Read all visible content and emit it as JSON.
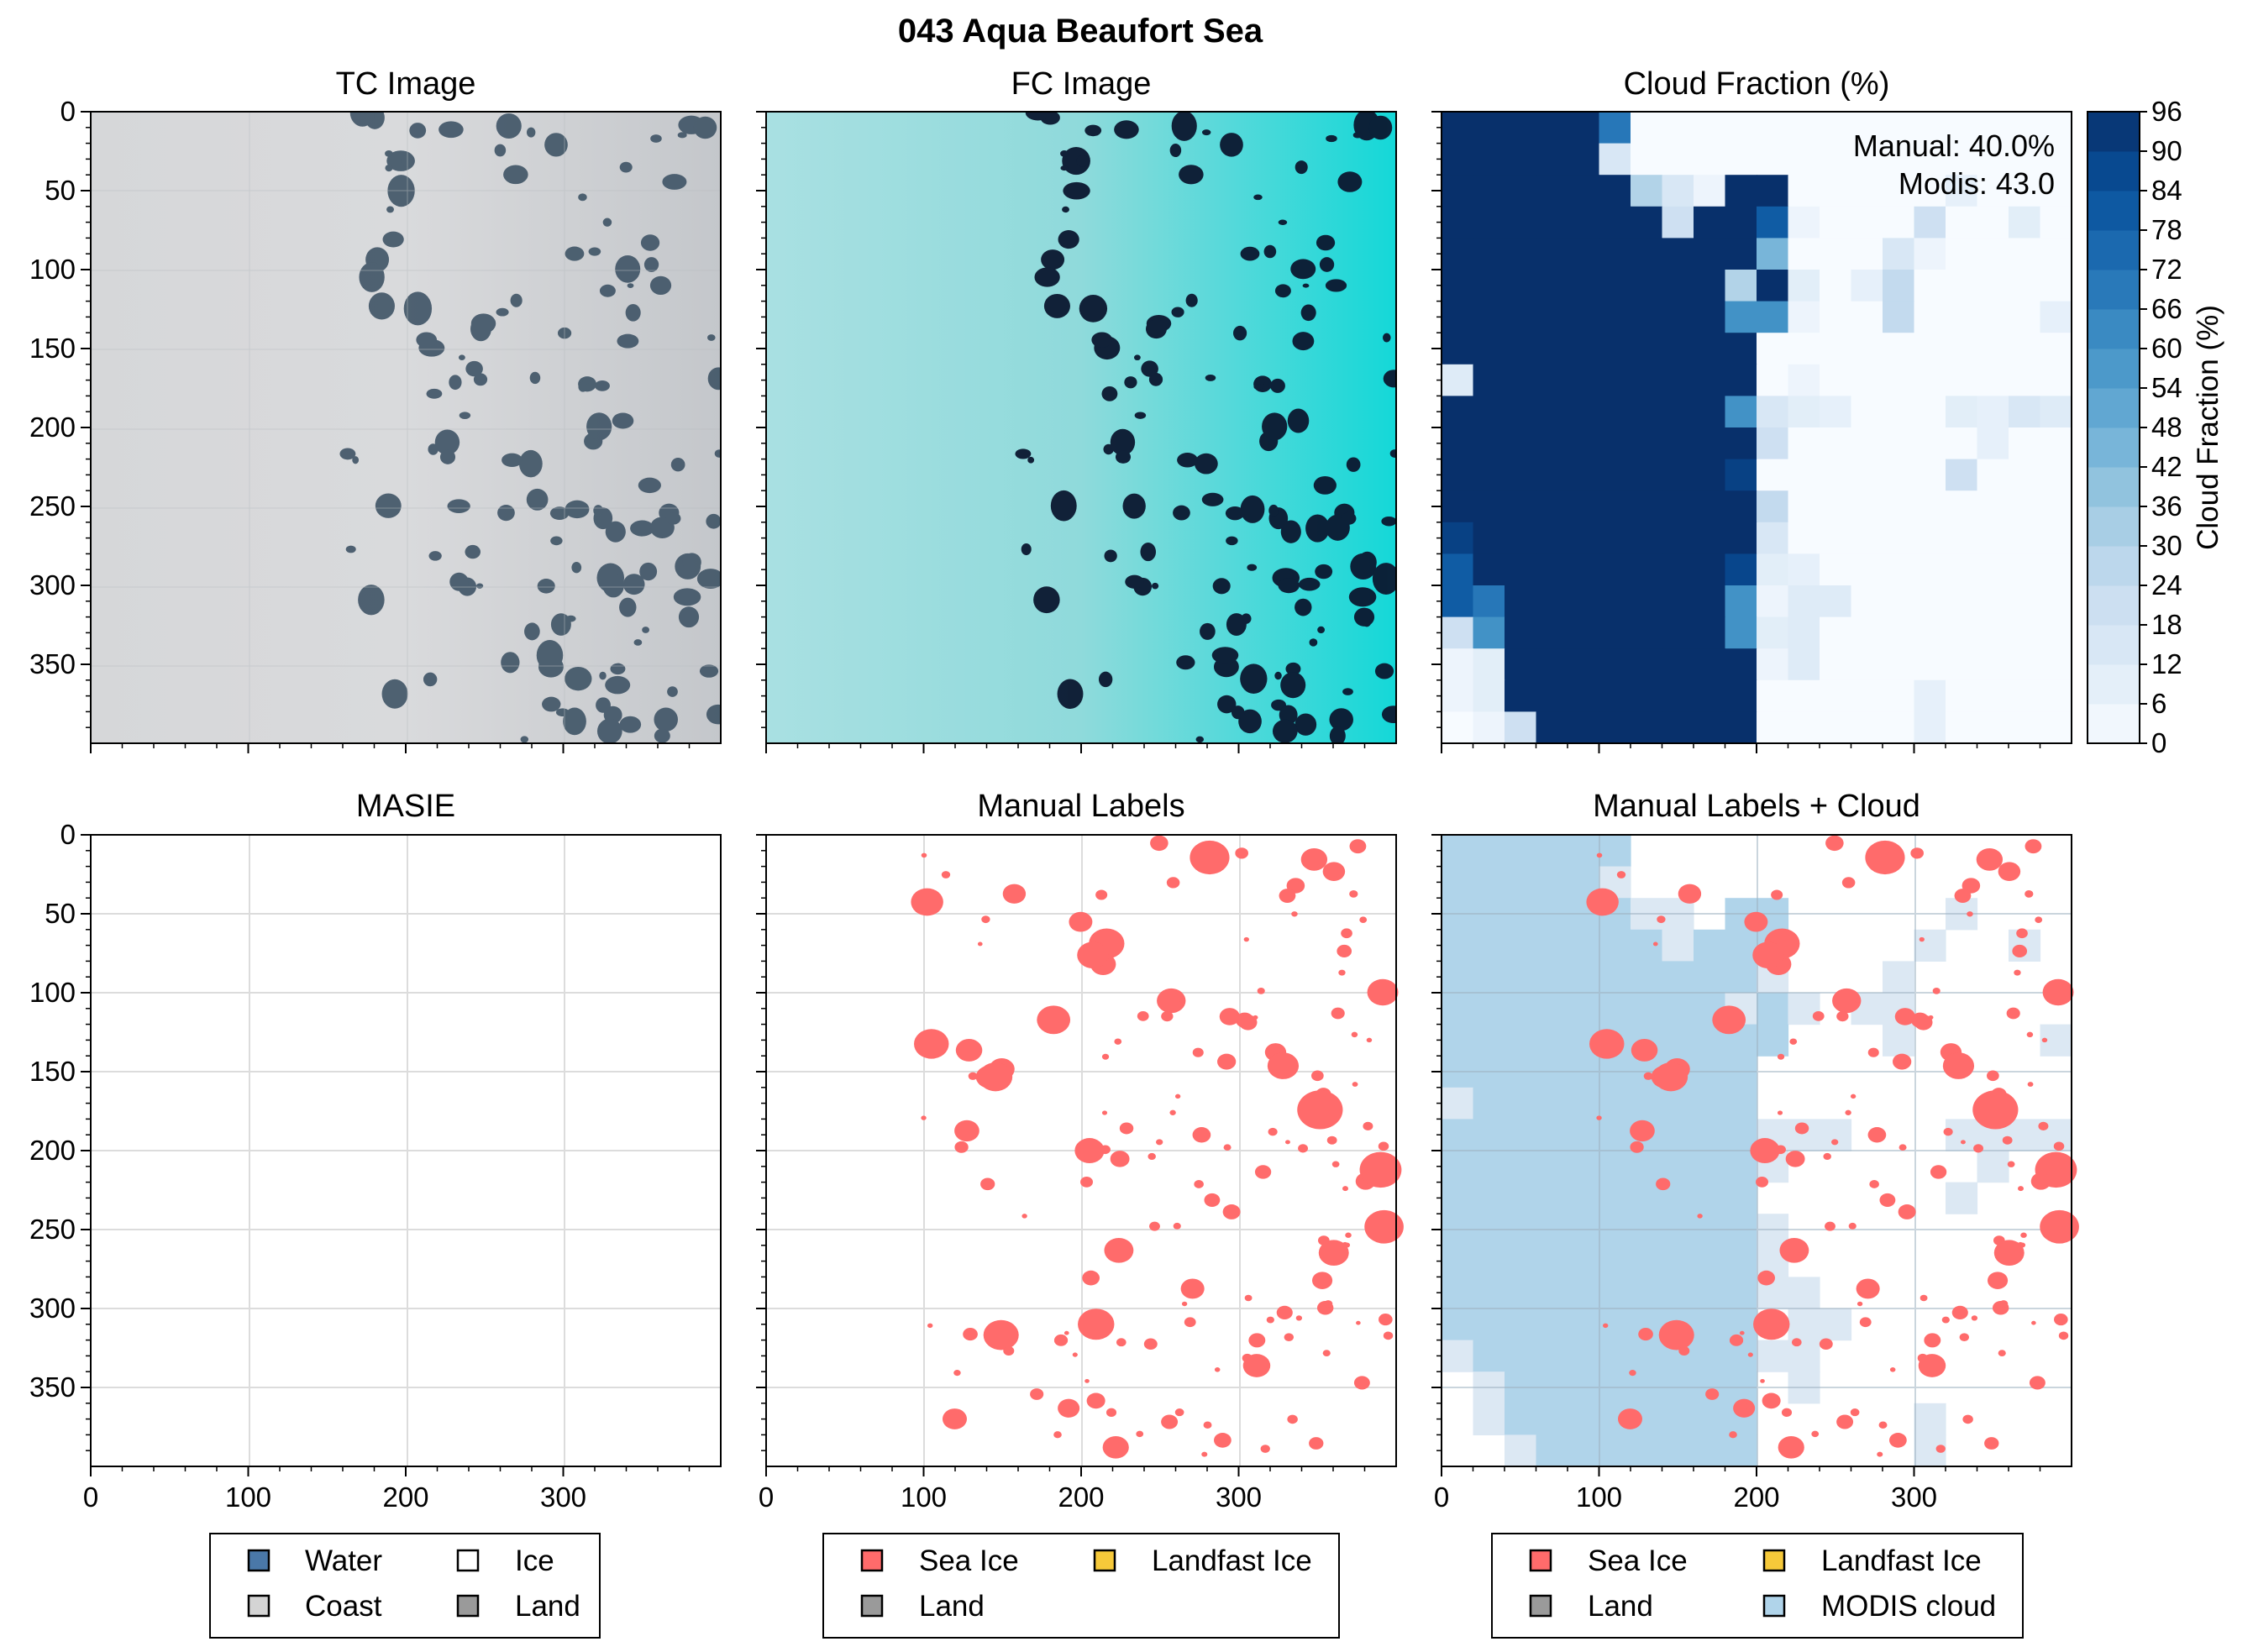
{
  "figure": {
    "suptitle": "043 Aqua Beaufort Sea"
  },
  "panels": {
    "tc": {
      "title": "TC Image"
    },
    "fc": {
      "title": "FC Image"
    },
    "cf": {
      "title": "Cloud Fraction (%)",
      "annotation_manual": "Manual: 40.0%",
      "annotation_modis": "Modis: 43.0",
      "colorbar_label": "Cloud Fraction (%)",
      "colorbar_ticks": [
        "0",
        "6",
        "12",
        "18",
        "24",
        "30",
        "36",
        "42",
        "48",
        "54",
        "60",
        "66",
        "72",
        "78",
        "84",
        "90",
        "96"
      ]
    },
    "masie": {
      "title": "MASIE",
      "legend": [
        "Water",
        "Ice",
        "Coast",
        "Land"
      ]
    },
    "manual": {
      "title": "Manual Labels",
      "legend": [
        "Sea Ice",
        "Landfast Ice",
        "Land"
      ]
    },
    "manual_cloud": {
      "title": "Manual Labels + Cloud",
      "legend": [
        "Sea Ice",
        "Landfast Ice",
        "Land",
        "MODIS cloud"
      ]
    }
  },
  "axis_ticks": [
    "0",
    "50",
    "100",
    "150",
    "200",
    "250",
    "300",
    "350"
  ],
  "axis_ticks_x": [
    "0",
    "100",
    "200",
    "300"
  ],
  "colors": {
    "water": "#4a78a8",
    "ice": "#ffffff",
    "coast": "#d4d4d4",
    "land": "#9a9a9a",
    "sea_ice": "#ff6b6b",
    "landfast_ice": "#f6c93a",
    "modis_cloud": "#b0d4ea",
    "cloud_max": "#08306b",
    "fc_cyan": "#00dada",
    "tc_gray": "#c9ccd0"
  },
  "chart_data": [
    {
      "type": "heatmap",
      "panel": "Cloud Fraction (%)",
      "description_units": "percent cloud fraction per ~20px cell (approximate)",
      "xlim": [
        0,
        400
      ],
      "ylim": [
        400,
        0
      ],
      "clim": [
        0,
        96
      ],
      "rows_y": [
        0,
        20,
        40,
        60,
        80,
        100,
        120,
        140,
        160,
        180,
        200,
        220,
        240,
        260,
        280,
        300,
        320,
        340,
        360,
        380
      ],
      "cols_x": [
        0,
        20,
        40,
        60,
        80,
        100,
        120,
        140,
        160,
        180,
        200,
        220,
        240,
        260,
        280,
        300,
        320,
        340,
        360,
        380
      ],
      "values": [
        [
          96,
          96,
          96,
          96,
          96,
          70,
          0,
          0,
          0,
          0,
          0,
          0,
          0,
          0,
          0,
          0,
          0,
          0,
          0,
          0
        ],
        [
          96,
          96,
          96,
          96,
          96,
          15,
          0,
          0,
          0,
          0,
          0,
          0,
          0,
          0,
          0,
          0,
          0,
          0,
          0,
          0
        ],
        [
          96,
          96,
          96,
          96,
          96,
          96,
          30,
          15,
          5,
          96,
          96,
          0,
          0,
          0,
          0,
          0,
          8,
          0,
          0,
          0
        ],
        [
          96,
          96,
          96,
          96,
          96,
          96,
          96,
          20,
          96,
          96,
          80,
          5,
          0,
          0,
          0,
          20,
          0,
          0,
          10,
          0
        ],
        [
          96,
          96,
          96,
          96,
          96,
          96,
          96,
          96,
          96,
          96,
          45,
          0,
          0,
          0,
          15,
          5,
          0,
          0,
          0,
          0
        ],
        [
          96,
          96,
          96,
          96,
          96,
          96,
          96,
          96,
          96,
          30,
          96,
          10,
          0,
          8,
          25,
          0,
          0,
          0,
          0,
          0
        ],
        [
          96,
          96,
          96,
          96,
          96,
          96,
          96,
          96,
          96,
          60,
          60,
          5,
          0,
          0,
          25,
          0,
          0,
          0,
          0,
          8
        ],
        [
          96,
          96,
          96,
          96,
          96,
          96,
          96,
          96,
          96,
          96,
          0,
          0,
          0,
          0,
          0,
          0,
          0,
          0,
          0,
          0
        ],
        [
          12,
          96,
          96,
          96,
          96,
          96,
          96,
          96,
          96,
          96,
          0,
          5,
          0,
          0,
          0,
          0,
          0,
          0,
          0,
          0
        ],
        [
          96,
          96,
          96,
          96,
          96,
          96,
          96,
          96,
          96,
          60,
          15,
          10,
          8,
          0,
          0,
          0,
          10,
          8,
          15,
          12
        ],
        [
          96,
          96,
          96,
          96,
          96,
          96,
          96,
          96,
          96,
          96,
          20,
          0,
          0,
          0,
          0,
          0,
          0,
          8,
          0,
          0
        ],
        [
          96,
          96,
          96,
          96,
          96,
          96,
          96,
          96,
          96,
          90,
          0,
          0,
          0,
          0,
          0,
          0,
          20,
          0,
          0,
          0
        ],
        [
          96,
          96,
          96,
          96,
          96,
          96,
          96,
          96,
          96,
          96,
          25,
          0,
          0,
          0,
          0,
          0,
          0,
          0,
          0,
          0
        ],
        [
          90,
          96,
          96,
          96,
          96,
          96,
          96,
          96,
          96,
          96,
          15,
          0,
          0,
          0,
          0,
          0,
          0,
          0,
          0,
          0
        ],
        [
          80,
          96,
          96,
          96,
          96,
          96,
          96,
          96,
          96,
          88,
          10,
          8,
          0,
          0,
          0,
          0,
          0,
          0,
          0,
          0
        ],
        [
          80,
          70,
          96,
          96,
          96,
          96,
          96,
          96,
          96,
          60,
          5,
          12,
          12,
          0,
          0,
          0,
          0,
          0,
          0,
          0
        ],
        [
          20,
          60,
          96,
          96,
          96,
          96,
          96,
          96,
          96,
          60,
          10,
          12,
          0,
          0,
          0,
          0,
          0,
          0,
          0,
          0
        ],
        [
          5,
          10,
          96,
          96,
          96,
          96,
          96,
          96,
          96,
          96,
          5,
          12,
          0,
          0,
          0,
          0,
          0,
          0,
          0,
          0
        ],
        [
          5,
          10,
          96,
          96,
          96,
          96,
          96,
          96,
          96,
          96,
          0,
          0,
          0,
          0,
          0,
          8,
          0,
          0,
          0,
          0
        ],
        [
          0,
          5,
          20,
          96,
          96,
          96,
          96,
          96,
          96,
          96,
          0,
          0,
          0,
          0,
          0,
          8,
          0,
          0,
          0,
          0
        ]
      ]
    }
  ]
}
